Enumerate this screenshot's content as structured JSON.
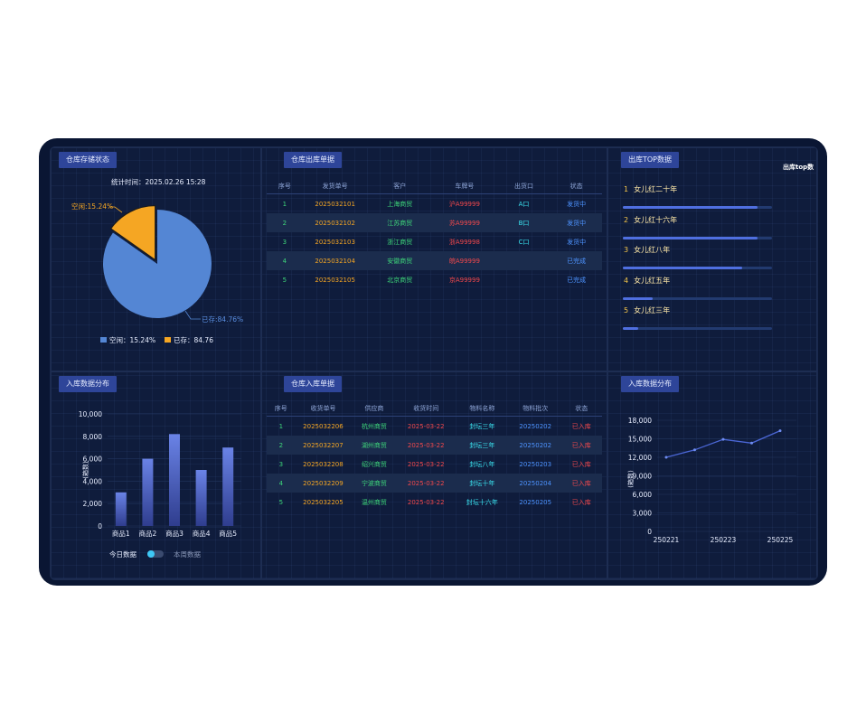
{
  "storage": {
    "title": "仓库存储状态",
    "time": "统计时间：2025.02.26 15:28",
    "pie_free_label": "空闲:15.24%",
    "pie_used_label": "已存:84.76%",
    "legend_free": "空闲：15.24%",
    "legend_used": "已存：84.76",
    "free_pct": 15.24,
    "used_pct": 84.76,
    "color_free": "#f5a623",
    "color_used": "#5486d4"
  },
  "outbound": {
    "title": "仓库出库单据",
    "headers": [
      "序号",
      "发货单号",
      "客户",
      "车牌号",
      "出货口",
      "状态"
    ],
    "rows": [
      [
        "1",
        "2025032101",
        "上海商贸",
        "沪A99999",
        "A口",
        "发货中"
      ],
      [
        "2",
        "2025032102",
        "江苏商贸",
        "苏A99999",
        "B口",
        "发货中"
      ],
      [
        "3",
        "2025032103",
        "浙江商贸",
        "浙A99998",
        "C口",
        "发货中"
      ],
      [
        "4",
        "2025032104",
        "安徽商贸",
        "皖A99999",
        "",
        "已完成"
      ],
      [
        "5",
        "2025032105",
        "北京商贸",
        "京A99999",
        "",
        "已完成"
      ]
    ]
  },
  "top": {
    "title": "出库TOP数据",
    "side_label": "出库top数",
    "items": [
      {
        "rank": "1",
        "name": "女儿红二十年",
        "pct": 90
      },
      {
        "rank": "2",
        "name": "女儿红十六年",
        "pct": 90
      },
      {
        "rank": "3",
        "name": "女儿红八年",
        "pct": 80
      },
      {
        "rank": "4",
        "name": "女儿红五年",
        "pct": 20
      },
      {
        "rank": "5",
        "name": "女儿红三年",
        "pct": 10
      }
    ]
  },
  "inbound_chart": {
    "title": "入库数据分布",
    "toggle_today": "今日数据",
    "toggle_week": "本周数据"
  },
  "inbound": {
    "title": "仓库入库单据",
    "headers": [
      "序号",
      "收货单号",
      "供应商",
      "收货时间",
      "物料名称",
      "物料批次",
      "状态"
    ],
    "rows": [
      [
        "1",
        "2025032206",
        "杭州商贸",
        "2025-03-22",
        "封坛三年",
        "20250202",
        "已入库"
      ],
      [
        "2",
        "2025032207",
        "湖州商贸",
        "2025-03-22",
        "封坛三年",
        "20250202",
        "已入库"
      ],
      [
        "3",
        "2025032208",
        "绍兴商贸",
        "2025-03-22",
        "封坛八年",
        "20250203",
        "已入库"
      ],
      [
        "4",
        "2025032209",
        "宁波商贸",
        "2025-03-22",
        "封坛十年",
        "20250204",
        "已入库"
      ],
      [
        "5",
        "2025032205",
        "温州商贸",
        "2025-03-22",
        "封坛十六年",
        "20250205",
        "已入库"
      ]
    ]
  },
  "inbound_line": {
    "title": "入库数据分布"
  },
  "chart_data": [
    {
      "type": "pie",
      "labels": [
        "空闲",
        "已存"
      ],
      "values": [
        15.24,
        84.76
      ]
    },
    {
      "type": "bar",
      "categories": [
        "商品1",
        "商品2",
        "商品3",
        "商品4",
        "商品5"
      ],
      "values": [
        3000,
        6000,
        8200,
        5000,
        7000
      ],
      "ylabel": "(箱数)",
      "yticks": [
        "0",
        "2,000",
        "4,000",
        "6,000",
        "8,000",
        "10,000"
      ],
      "ylim": [
        0,
        10000
      ]
    },
    {
      "type": "line",
      "x": [
        "250221",
        "250222",
        "250223",
        "250224",
        "250225"
      ],
      "xticks": [
        "250221",
        "250223",
        "250225"
      ],
      "values": [
        12000,
        13200,
        14900,
        14300,
        16300
      ],
      "ylabel": "(箱数)",
      "yticks": [
        "0",
        "3,000",
        "6,000",
        "9,000",
        "12,000",
        "15,000",
        "18,000"
      ],
      "ylim": [
        0,
        18000
      ]
    }
  ]
}
